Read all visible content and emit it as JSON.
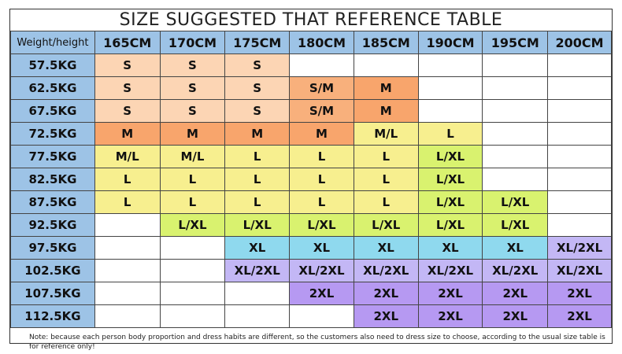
{
  "title": "SIZE SUGGESTED THAT REFERENCE TABLE",
  "header": {
    "corner": "Weight/height",
    "heights": [
      "165CM",
      "170CM",
      "175CM",
      "180CM",
      "185CM",
      "190CM",
      "195CM",
      "200CM"
    ]
  },
  "rows": [
    {
      "weight": "57.5KG",
      "sizes": [
        "S",
        "S",
        "S",
        "",
        "",
        "",
        "",
        ""
      ]
    },
    {
      "weight": "62.5KG",
      "sizes": [
        "S",
        "S",
        "S",
        "S/M",
        "M",
        "",
        "",
        ""
      ]
    },
    {
      "weight": "67.5KG",
      "sizes": [
        "S",
        "S",
        "S",
        "S/M",
        "M",
        "",
        "",
        ""
      ]
    },
    {
      "weight": "72.5KG",
      "sizes": [
        "M",
        "M",
        "M",
        "M",
        "M/L",
        "L",
        "",
        ""
      ]
    },
    {
      "weight": "77.5KG",
      "sizes": [
        "M/L",
        "M/L",
        "L",
        "L",
        "L",
        "L/XL",
        "",
        ""
      ]
    },
    {
      "weight": "82.5KG",
      "sizes": [
        "L",
        "L",
        "L",
        "L",
        "L",
        "L/XL",
        "",
        ""
      ]
    },
    {
      "weight": "87.5KG",
      "sizes": [
        "L",
        "L",
        "L",
        "L",
        "L",
        "L/XL",
        "L/XL",
        ""
      ]
    },
    {
      "weight": "92.5KG",
      "sizes": [
        "",
        "L/XL",
        "L/XL",
        "L/XL",
        "L/XL",
        "L/XL",
        "L/XL",
        ""
      ]
    },
    {
      "weight": "97.5KG",
      "sizes": [
        "",
        "",
        "XL",
        "XL",
        "XL",
        "XL",
        "XL",
        "XL/2XL"
      ]
    },
    {
      "weight": "102.5KG",
      "sizes": [
        "",
        "",
        "XL/2XL",
        "XL/2XL",
        "XL/2XL",
        "XL/2XL",
        "XL/2XL",
        "XL/2XL"
      ]
    },
    {
      "weight": "107.5KG",
      "sizes": [
        "",
        "",
        "",
        "2XL",
        "2XL",
        "2XL",
        "2XL",
        "2XL"
      ]
    },
    {
      "weight": "112.5KG",
      "sizes": [
        "",
        "",
        "",
        "",
        "2XL",
        "2XL",
        "2XL",
        "2XL"
      ]
    }
  ],
  "colors": {
    "header": "#9dc3e6",
    "S": "#fcd5b4",
    "S/M": "#f8b07c",
    "M": "#f8a56c",
    "M/L": "#f7ef8f",
    "L": "#f7ef8f",
    "L/XL": "#d9f26f",
    "XL": "#8fd9ee",
    "XL/2XL": "#c3b7f5",
    "2XL": "#b699f2"
  },
  "note": "Note: because each person body proportion and dress habits are different, so the customers also need to dress size to choose, according to the usual size table is for reference only!"
}
